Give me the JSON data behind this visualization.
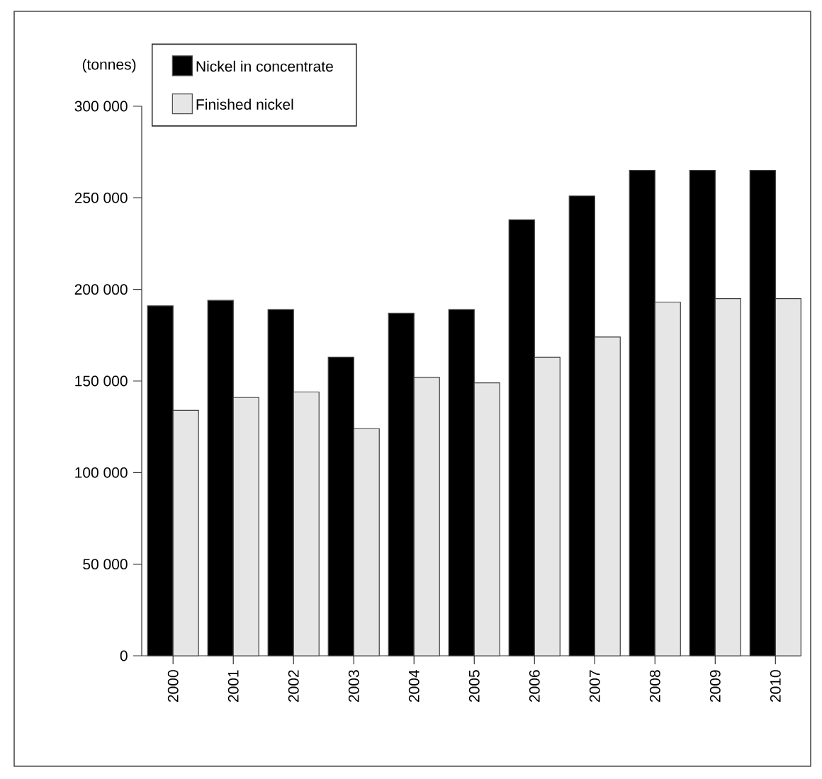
{
  "chart_data": {
    "type": "bar",
    "ylabel": "(tonnes)",
    "categories": [
      "2000",
      "2001",
      "2002",
      "2003",
      "2004",
      "2005",
      "2006",
      "2007",
      "2008",
      "2009",
      "2010"
    ],
    "series": [
      {
        "name": "Nickel in concentrate",
        "color": "#000000",
        "values": [
          191000,
          194000,
          189000,
          163000,
          187000,
          189000,
          238000,
          251000,
          265000,
          265000,
          265000
        ]
      },
      {
        "name": "Finished nickel",
        "color": "#e6e6e6",
        "values": [
          134000,
          141000,
          144000,
          124000,
          152000,
          149000,
          163000,
          174000,
          193000,
          195000,
          195000
        ]
      }
    ],
    "ylim": [
      0,
      300000
    ],
    "yticks": [
      0,
      {
        "value": 50000,
        "label": "50 000"
      },
      {
        "value": 100000,
        "label": "100 000"
      },
      {
        "value": 150000,
        "label": "150 000"
      },
      {
        "value": 200000,
        "label": "200 000"
      },
      {
        "value": 250000,
        "label": "250 000"
      },
      {
        "value": 300000,
        "label": "300 000"
      }
    ],
    "legend": "top left",
    "grid": false
  }
}
